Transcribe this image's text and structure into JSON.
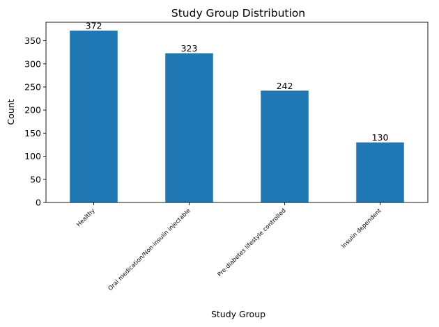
{
  "chart_data": {
    "type": "bar",
    "title": "Study Group Distribution",
    "xlabel": "Study Group",
    "ylabel": "Count",
    "categories": [
      "Healthy",
      "Oral medication/Non-insulin injectable",
      "Pre-diabetes lifestyle controlled",
      "Insulin dependent"
    ],
    "values": [
      372,
      323,
      242,
      130
    ],
    "data_labels": [
      "372",
      "323",
      "242",
      "130"
    ],
    "ylim": [
      0,
      390
    ],
    "yticks": [
      0,
      50,
      100,
      150,
      200,
      250,
      300,
      350
    ],
    "ytick_labels": [
      "0",
      "50",
      "100",
      "150",
      "200",
      "250",
      "300",
      "350"
    ],
    "bar_color": "#1f77b4",
    "grid": false,
    "legend": "none"
  }
}
